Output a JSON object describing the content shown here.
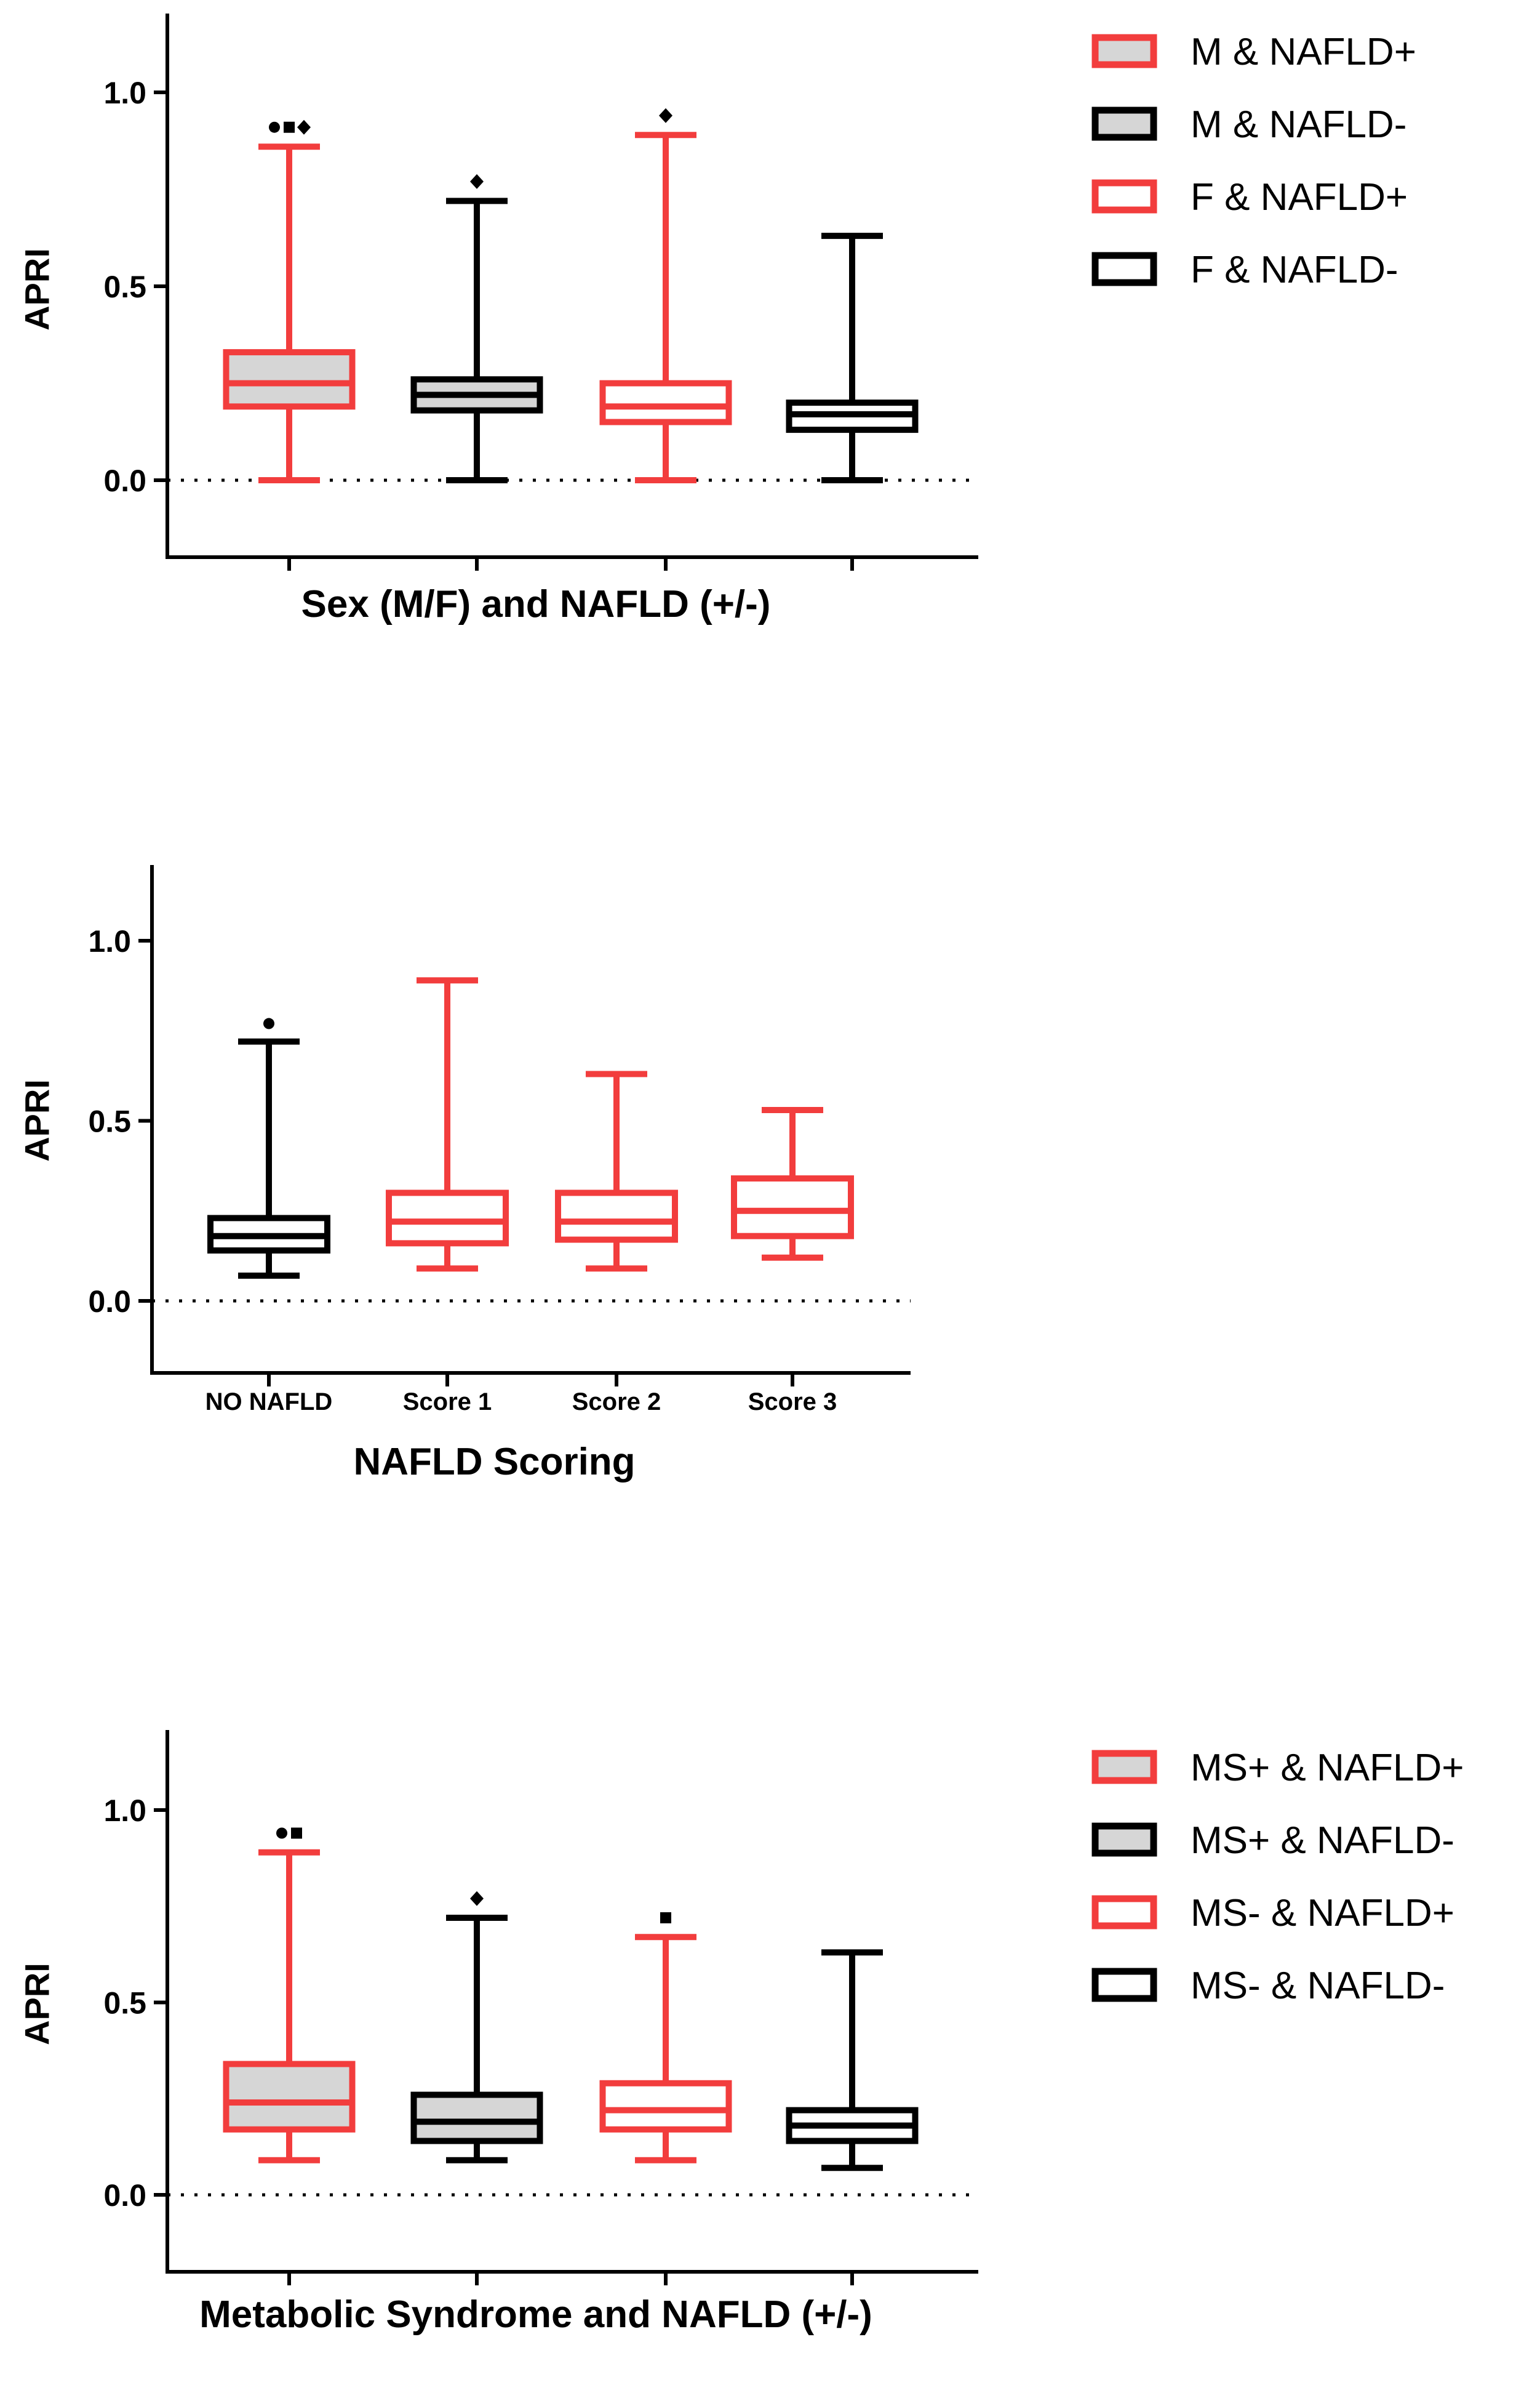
{
  "colors": {
    "red": "#f23d3d",
    "black": "#000000",
    "gray_fill": "#d6d6d6"
  },
  "chart_data": [
    {
      "type": "box",
      "ylabel": "APRI",
      "xlabel": "Sex (M/F) and NAFLD (+/-)",
      "ylim": [
        -0.2,
        1.2
      ],
      "yticks": [
        "0.0",
        "0.5",
        "1.0"
      ],
      "reference_line": 0,
      "legend": [
        "M & NAFLD+",
        "M & NAFLD-",
        "F & NAFLD+",
        "F & NAFLD-"
      ],
      "groups": [
        {
          "name": "M & NAFLD+",
          "color": "red",
          "filled": true,
          "min": 0.0,
          "q1": 0.19,
          "median": 0.25,
          "q3": 0.33,
          "max": 0.86,
          "outliers": [
            {
              "v": 0.91,
              "m": "circle"
            },
            {
              "v": 0.91,
              "m": "square"
            },
            {
              "v": 0.91,
              "m": "diamond"
            }
          ]
        },
        {
          "name": "M & NAFLD-",
          "color": "black",
          "filled": true,
          "min": 0.0,
          "q1": 0.18,
          "median": 0.22,
          "q3": 0.26,
          "max": 0.72,
          "outliers": [
            {
              "v": 0.77,
              "m": "diamond"
            }
          ]
        },
        {
          "name": "F & NAFLD+",
          "color": "red",
          "filled": false,
          "min": 0.0,
          "q1": 0.15,
          "median": 0.19,
          "q3": 0.25,
          "max": 0.89,
          "outliers": [
            {
              "v": 0.94,
              "m": "diamond"
            }
          ]
        },
        {
          "name": "F & NAFLD-",
          "color": "black",
          "filled": false,
          "min": 0.0,
          "q1": 0.13,
          "median": 0.17,
          "q3": 0.2,
          "max": 0.63,
          "outliers": []
        }
      ]
    },
    {
      "type": "box",
      "ylabel": "APRI",
      "xlabel": "NAFLD Scoring",
      "ylim": [
        -0.2,
        1.2
      ],
      "yticks": [
        "0.0",
        "0.5",
        "1.0"
      ],
      "reference_line": 0,
      "categories": [
        "NO NAFLD",
        "Score 1",
        "Score 2",
        "Score 3"
      ],
      "groups": [
        {
          "name": "NO NAFLD",
          "color": "black",
          "filled": false,
          "min": 0.07,
          "q1": 0.14,
          "median": 0.18,
          "q3": 0.23,
          "max": 0.72,
          "outliers": [
            {
              "v": 0.77,
              "m": "circle"
            }
          ]
        },
        {
          "name": "Score 1",
          "color": "red",
          "filled": false,
          "min": 0.09,
          "q1": 0.16,
          "median": 0.22,
          "q3": 0.3,
          "max": 0.89,
          "outliers": []
        },
        {
          "name": "Score 2",
          "color": "red",
          "filled": false,
          "min": 0.09,
          "q1": 0.17,
          "median": 0.22,
          "q3": 0.3,
          "max": 0.63,
          "outliers": []
        },
        {
          "name": "Score 3",
          "color": "red",
          "filled": false,
          "min": 0.12,
          "q1": 0.18,
          "median": 0.25,
          "q3": 0.34,
          "max": 0.53,
          "outliers": []
        }
      ]
    },
    {
      "type": "box",
      "ylabel": "APRI",
      "xlabel": "Metabolic Syndrome and NAFLD (+/-)",
      "ylim": [
        -0.2,
        1.2
      ],
      "yticks": [
        "0.0",
        "0.5",
        "1.0"
      ],
      "reference_line": 0,
      "legend": [
        "MS+ & NAFLD+",
        "MS+ & NAFLD-",
        "MS- & NAFLD+",
        "MS- & NAFLD-"
      ],
      "groups": [
        {
          "name": "MS+ & NAFLD+",
          "color": "red",
          "filled": true,
          "min": 0.09,
          "q1": 0.17,
          "median": 0.24,
          "q3": 0.34,
          "max": 0.89,
          "outliers": [
            {
              "v": 0.94,
              "m": "circle"
            },
            {
              "v": 0.94,
              "m": "square"
            }
          ]
        },
        {
          "name": "MS+ & NAFLD-",
          "color": "black",
          "filled": true,
          "min": 0.09,
          "q1": 0.14,
          "median": 0.19,
          "q3": 0.26,
          "max": 0.72,
          "outliers": [
            {
              "v": 0.77,
              "m": "diamond"
            }
          ]
        },
        {
          "name": "MS- & NAFLD+",
          "color": "red",
          "filled": false,
          "min": 0.09,
          "q1": 0.17,
          "median": 0.22,
          "q3": 0.29,
          "max": 0.67,
          "outliers": [
            {
              "v": 0.72,
              "m": "square"
            }
          ]
        },
        {
          "name": "MS- & NAFLD-",
          "color": "black",
          "filled": false,
          "min": 0.07,
          "q1": 0.14,
          "median": 0.18,
          "q3": 0.22,
          "max": 0.63,
          "outliers": []
        }
      ]
    }
  ]
}
